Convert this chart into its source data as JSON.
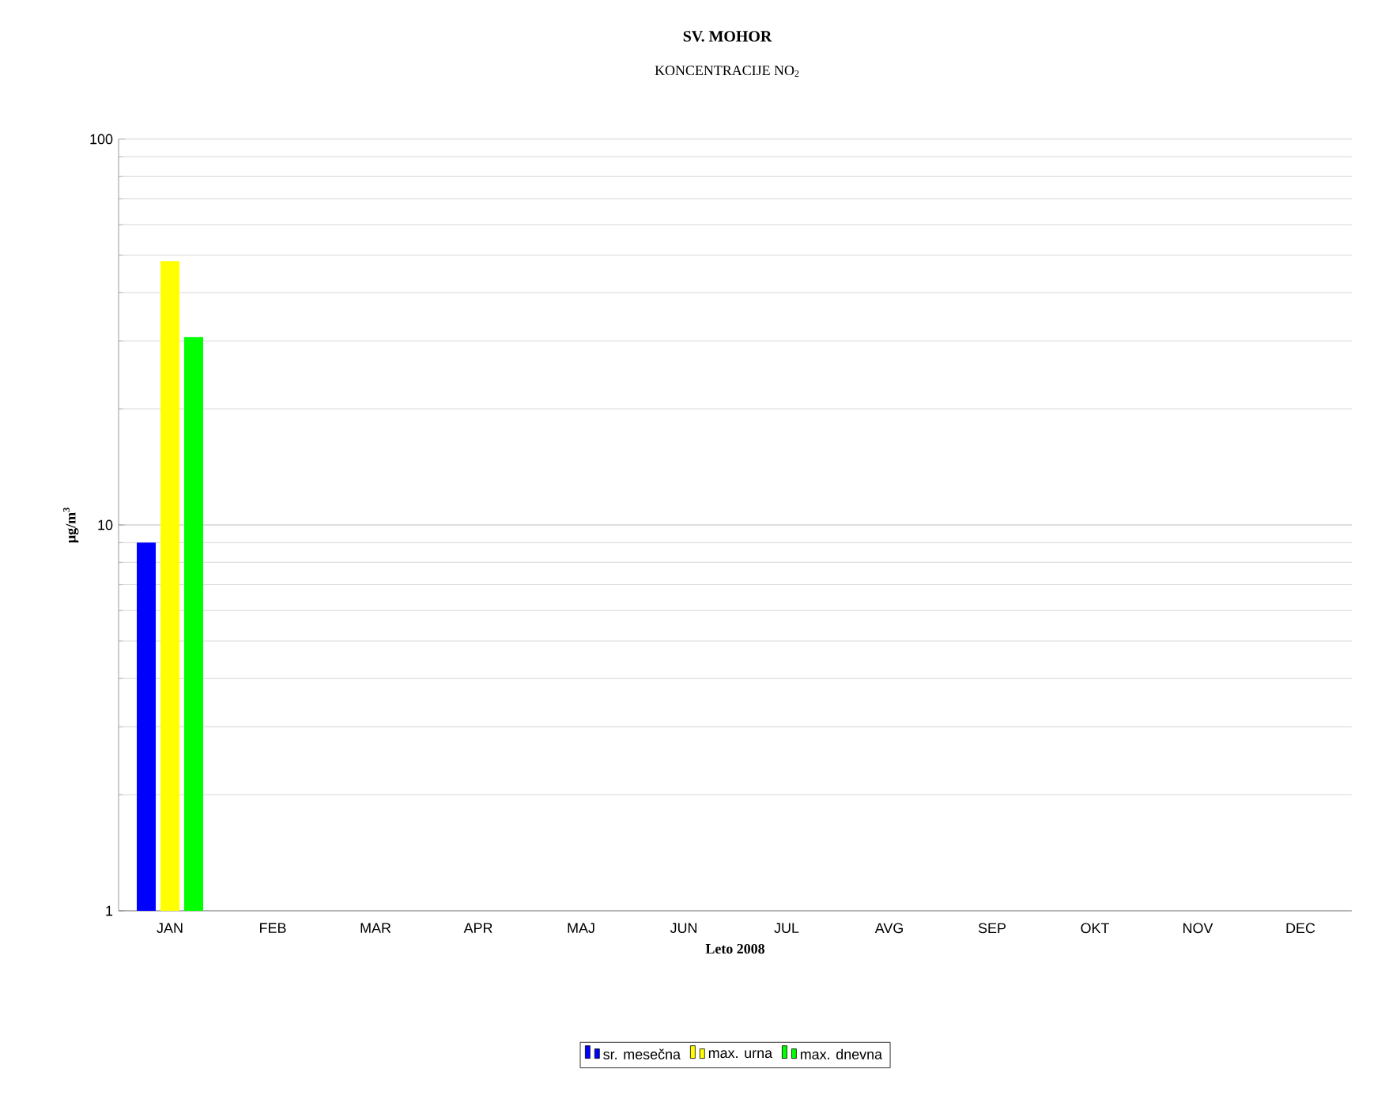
{
  "chart_data": {
    "type": "bar",
    "title": "SV. MOHOR",
    "subtitle": "KONCENTRACIJE NO$_{2}$",
    "xlabel": "Leto 2008",
    "ylabel": "µg/m$^{3}$",
    "categories": [
      "JAN",
      "FEB",
      "MAR",
      "APR",
      "MAJ",
      "JUN",
      "JUL",
      "AVG",
      "SEP",
      "OKT",
      "NOV",
      "DEC"
    ],
    "series": [
      {
        "name": "sr. mesečna",
        "color": "#0000ff",
        "values": [
          9.0,
          null,
          null,
          null,
          null,
          null,
          null,
          null,
          null,
          null,
          null,
          null
        ]
      },
      {
        "name": "max. urna",
        "color": "#ffff00",
        "values": [
          48.3,
          null,
          null,
          null,
          null,
          null,
          null,
          null,
          null,
          null,
          null,
          null
        ]
      },
      {
        "name": "max. dnevna",
        "color": "#00ff00",
        "values": [
          30.7,
          null,
          null,
          null,
          null,
          null,
          null,
          null,
          null,
          null,
          null,
          null
        ]
      }
    ],
    "log": "y",
    "ylim": [
      1,
      100
    ],
    "yticks": [
      1,
      10,
      100
    ],
    "grid": "y",
    "legend": "bottom"
  }
}
